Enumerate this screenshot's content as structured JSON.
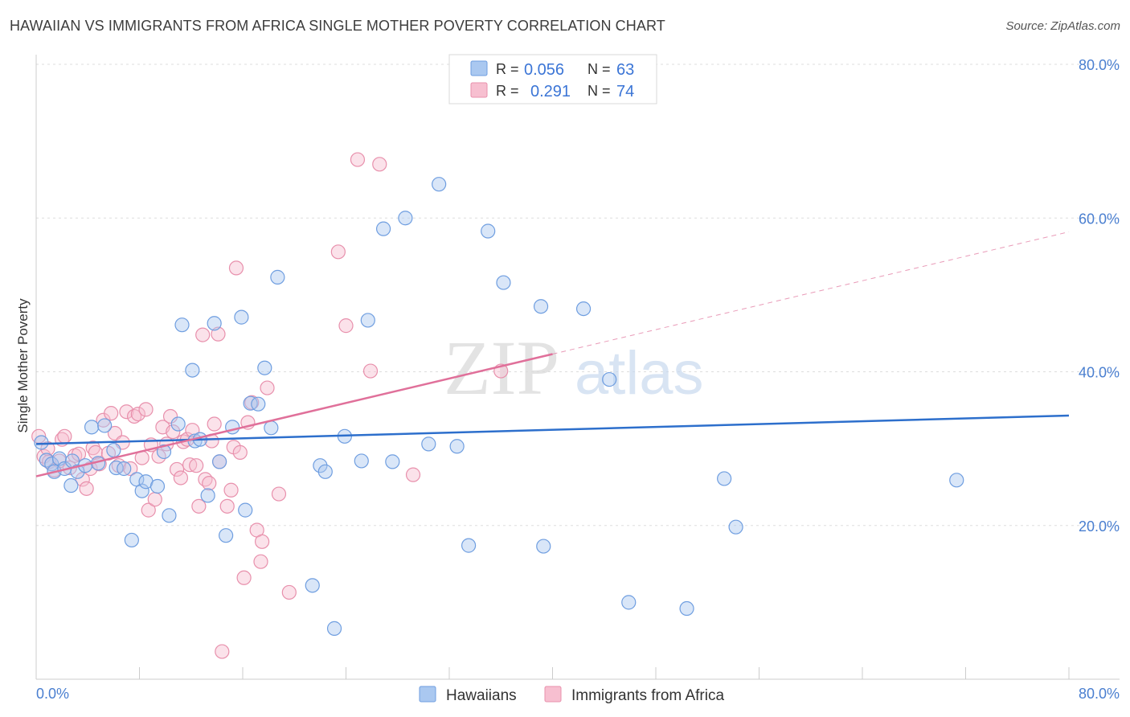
{
  "header": {
    "title": "HAWAIIAN VS IMMIGRANTS FROM AFRICA SINGLE MOTHER POVERTY CORRELATION CHART",
    "source": "Source: ZipAtlas.com"
  },
  "watermark": {
    "zip": "ZIP",
    "atlas": "atlas"
  },
  "colors": {
    "blue_fill": "#aac8f0",
    "blue_stroke": "#6f9ee0",
    "blue_line": "#2d6fcc",
    "pink_fill": "#f7bfd0",
    "pink_stroke": "#e890ac",
    "pink_line": "#e0709a",
    "tick_text": "#4a7fd0",
    "grid": "#dddddd"
  },
  "legend": {
    "rows": [
      {
        "r_label": "R =",
        "r_value": "0.056",
        "n_label": "N =",
        "n_value": "63"
      },
      {
        "r_label": "R =",
        "r_value": "0.291",
        "n_label": "N =",
        "n_value": "74"
      }
    ]
  },
  "bottom_legend": [
    "Hawaiians",
    "Immigrants from Africa"
  ],
  "chart_data": {
    "type": "scatter",
    "title": "HAWAIIAN VS IMMIGRANTS FROM AFRICA SINGLE MOTHER POVERTY CORRELATION CHART",
    "ylabel": "Single Mother Poverty",
    "xlabel": "",
    "xlim": [
      0,
      80
    ],
    "ylim": [
      0,
      80
    ],
    "x_tick_labels": [
      "0.0%",
      "80.0%"
    ],
    "y_tick_labels": [
      {
        "value": 80,
        "label": "80.0%"
      },
      {
        "value": 60,
        "label": "60.0%"
      },
      {
        "value": 40,
        "label": "40.0%"
      },
      {
        "value": 20,
        "label": "20.0%"
      }
    ],
    "grid": true,
    "legend_position": "top-center",
    "series": [
      {
        "name": "Hawaiians",
        "r": 0.056,
        "n": 63,
        "trend": {
          "x": [
            0,
            80
          ],
          "y": [
            30.6,
            34.3
          ],
          "dashed_from": null
        },
        "points": [
          [
            0.4,
            30.8
          ],
          [
            0.8,
            28.5
          ],
          [
            1.2,
            28.0
          ],
          [
            1.4,
            27.0
          ],
          [
            1.8,
            28.7
          ],
          [
            2.2,
            27.4
          ],
          [
            2.8,
            28.4
          ],
          [
            2.7,
            25.2
          ],
          [
            3.2,
            27.0
          ],
          [
            3.8,
            27.8
          ],
          [
            4.3,
            32.8
          ],
          [
            4.8,
            28.1
          ],
          [
            5.3,
            33.0
          ],
          [
            6.0,
            29.8
          ],
          [
            6.2,
            27.5
          ],
          [
            6.8,
            27.4
          ],
          [
            7.4,
            18.1
          ],
          [
            7.8,
            26.0
          ],
          [
            8.2,
            24.5
          ],
          [
            8.5,
            25.7
          ],
          [
            9.4,
            25.1
          ],
          [
            9.9,
            29.6
          ],
          [
            10.3,
            21.3
          ],
          [
            11.0,
            33.2
          ],
          [
            11.3,
            46.1
          ],
          [
            12.1,
            40.2
          ],
          [
            12.3,
            31.0
          ],
          [
            12.7,
            31.2
          ],
          [
            13.3,
            23.9
          ],
          [
            13.8,
            46.3
          ],
          [
            14.2,
            28.3
          ],
          [
            14.7,
            18.7
          ],
          [
            15.2,
            32.8
          ],
          [
            15.9,
            47.1
          ],
          [
            16.2,
            22.0
          ],
          [
            16.6,
            35.9
          ],
          [
            17.2,
            35.8
          ],
          [
            17.7,
            40.5
          ],
          [
            18.7,
            52.3
          ],
          [
            18.2,
            32.7
          ],
          [
            21.4,
            12.2
          ],
          [
            22.0,
            27.8
          ],
          [
            22.4,
            27.0
          ],
          [
            23.1,
            6.6
          ],
          [
            23.9,
            31.6
          ],
          [
            25.2,
            28.4
          ],
          [
            25.7,
            46.7
          ],
          [
            26.9,
            58.6
          ],
          [
            27.6,
            28.3
          ],
          [
            28.6,
            60.0
          ],
          [
            30.4,
            30.6
          ],
          [
            31.2,
            64.4
          ],
          [
            32.6,
            30.3
          ],
          [
            33.5,
            17.4
          ],
          [
            35.0,
            58.3
          ],
          [
            36.2,
            51.6
          ],
          [
            39.1,
            48.5
          ],
          [
            39.3,
            17.3
          ],
          [
            42.4,
            48.2
          ],
          [
            44.4,
            39.0
          ],
          [
            45.9,
            10.0
          ],
          [
            50.4,
            9.2
          ],
          [
            53.3,
            26.1
          ],
          [
            54.2,
            19.8
          ],
          [
            71.3,
            25.9
          ]
        ]
      },
      {
        "name": "Immigrants from Africa",
        "r": 0.291,
        "n": 74,
        "trend": {
          "x": [
            0,
            80
          ],
          "y": [
            26.4,
            58.2
          ],
          "dashed_from": 40
        },
        "points": [
          [
            0.2,
            31.6
          ],
          [
            0.6,
            29.0
          ],
          [
            1.0,
            28.3
          ],
          [
            1.4,
            27.2
          ],
          [
            1.8,
            28.4
          ],
          [
            2.0,
            31.2
          ],
          [
            2.2,
            31.6
          ],
          [
            2.6,
            27.5
          ],
          [
            3.0,
            29.1
          ],
          [
            3.3,
            29.3
          ],
          [
            3.6,
            26.0
          ],
          [
            3.9,
            24.8
          ],
          [
            4.2,
            27.4
          ],
          [
            4.4,
            30.1
          ],
          [
            4.6,
            29.5
          ],
          [
            4.9,
            28.0
          ],
          [
            5.2,
            33.7
          ],
          [
            5.6,
            29.4
          ],
          [
            5.8,
            34.6
          ],
          [
            6.1,
            32.0
          ],
          [
            6.4,
            27.8
          ],
          [
            6.7,
            30.8
          ],
          [
            7.0,
            34.8
          ],
          [
            7.3,
            27.4
          ],
          [
            7.6,
            34.2
          ],
          [
            7.9,
            34.5
          ],
          [
            8.2,
            28.8
          ],
          [
            8.5,
            35.1
          ],
          [
            8.7,
            22.0
          ],
          [
            8.9,
            30.5
          ],
          [
            9.2,
            23.4
          ],
          [
            9.5,
            29.0
          ],
          [
            9.8,
            32.8
          ],
          [
            10.1,
            30.6
          ],
          [
            10.4,
            34.2
          ],
          [
            10.6,
            32.2
          ],
          [
            10.9,
            27.3
          ],
          [
            11.2,
            26.2
          ],
          [
            11.4,
            30.9
          ],
          [
            11.7,
            31.2
          ],
          [
            11.9,
            27.9
          ],
          [
            12.1,
            32.4
          ],
          [
            12.4,
            27.8
          ],
          [
            12.6,
            22.5
          ],
          [
            12.9,
            44.8
          ],
          [
            13.1,
            26.0
          ],
          [
            13.4,
            25.5
          ],
          [
            13.6,
            31.0
          ],
          [
            13.8,
            33.2
          ],
          [
            14.1,
            44.9
          ],
          [
            14.2,
            28.3
          ],
          [
            14.4,
            3.6
          ],
          [
            14.8,
            22.5
          ],
          [
            15.1,
            24.6
          ],
          [
            15.3,
            30.2
          ],
          [
            15.5,
            53.5
          ],
          [
            15.8,
            29.5
          ],
          [
            16.1,
            13.2
          ],
          [
            16.4,
            33.4
          ],
          [
            16.7,
            36.0
          ],
          [
            17.1,
            19.4
          ],
          [
            17.4,
            15.3
          ],
          [
            17.5,
            17.9
          ],
          [
            17.9,
            37.9
          ],
          [
            18.8,
            24.1
          ],
          [
            19.6,
            11.3
          ],
          [
            23.4,
            55.6
          ],
          [
            24.0,
            46.0
          ],
          [
            24.9,
            67.6
          ],
          [
            25.9,
            40.1
          ],
          [
            26.6,
            67.0
          ],
          [
            29.2,
            26.6
          ],
          [
            36.0,
            40.1
          ],
          [
            0.9,
            30.0
          ]
        ]
      }
    ]
  }
}
